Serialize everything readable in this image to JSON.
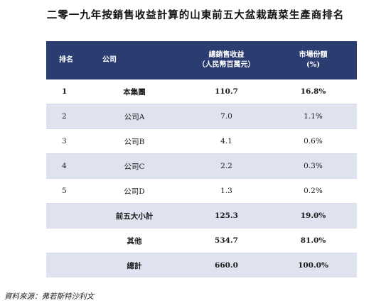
{
  "title": "二零一九年按銷售收益計算的山東前五大盆栽蔬菜生產商排名",
  "headers": {
    "rank": "排名",
    "company": "公司",
    "revenue_line1": "總銷售收益",
    "revenue_line2": "（人民幣百萬元）",
    "share_line1": "市場份額",
    "share_line2": "(%)"
  },
  "rows": [
    {
      "rank": "1",
      "company": "本集團",
      "revenue": "110.7",
      "share": "16.8%",
      "bold": true
    },
    {
      "rank": "2",
      "company": "公司A",
      "revenue": "7.0",
      "share": "1.1%",
      "bold": false
    },
    {
      "rank": "3",
      "company": "公司B",
      "revenue": "4.1",
      "share": "0.6%",
      "bold": false
    },
    {
      "rank": "4",
      "company": "公司C",
      "revenue": "2.2",
      "share": "0.3%",
      "bold": false
    },
    {
      "rank": "5",
      "company": "公司D",
      "revenue": "1.3",
      "share": "0.2%",
      "bold": false
    },
    {
      "rank": "",
      "company": "前五大小計",
      "revenue": "125.3",
      "share": "19.0%",
      "bold": true
    },
    {
      "rank": "",
      "company": "其他",
      "revenue": "534.7",
      "share": "81.0%",
      "bold": true
    },
    {
      "rank": "",
      "company": "總計",
      "revenue": "660.0",
      "share": "100.0%",
      "bold": true
    }
  ],
  "source": "資料來源：弗若斯特沙利文",
  "colors": {
    "header_bg": "#2b3d70",
    "row_shade": "#dfe3ef"
  }
}
